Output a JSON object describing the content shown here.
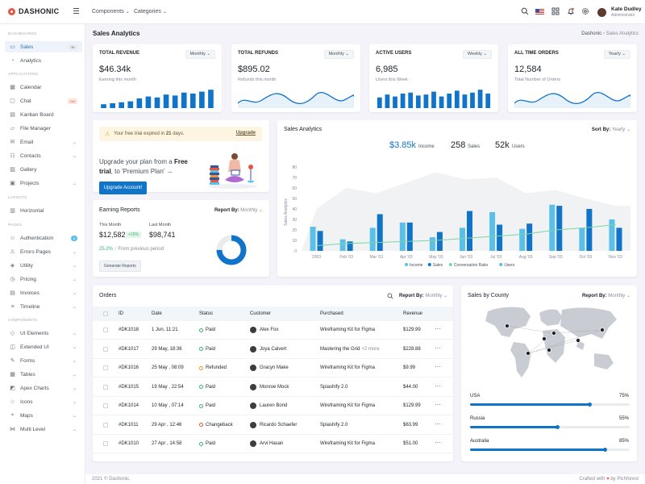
{
  "brand": "DASHONIC",
  "topbar": {
    "menu1": "Components",
    "menu2": "Categories",
    "user_name": "Kate Dudley",
    "user_role": "Administrator"
  },
  "sidebar": {
    "section1": "DASHBOARDS",
    "section2": "APPLICATIONS",
    "section3": "LAYOUTS",
    "section4": "PAGES",
    "section5": "COMPONENTS",
    "items": [
      {
        "label": "Sales",
        "icon": "monitor-icon",
        "badge": "5+",
        "active": true
      },
      {
        "label": "Analytics",
        "icon": "pie-chart-icon"
      },
      {
        "label": "Calendar",
        "icon": "calendar-icon"
      },
      {
        "label": "Chat",
        "icon": "chat-icon",
        "badge": "Hot"
      },
      {
        "label": "Kanban Board",
        "icon": "kanban-icon"
      },
      {
        "label": "File Manager",
        "icon": "folder-icon"
      },
      {
        "label": "Email",
        "icon": "mail-icon",
        "chev": true
      },
      {
        "label": "Contacts",
        "icon": "contacts-icon",
        "chev": true
      },
      {
        "label": "Gallery",
        "icon": "image-icon"
      },
      {
        "label": "Projects",
        "icon": "briefcase-icon",
        "chev": true
      },
      {
        "label": "Horizontal",
        "icon": "layout-icon"
      },
      {
        "label": "Authentication",
        "icon": "user-icon",
        "badge": "8"
      },
      {
        "label": "Errors Pages",
        "icon": "alert-icon",
        "chev": true
      },
      {
        "label": "Utility",
        "icon": "cube-icon",
        "chev": true
      },
      {
        "label": "Pricing",
        "icon": "pricing-icon",
        "chev": true
      },
      {
        "label": "Invoices",
        "icon": "invoice-icon",
        "chev": true
      },
      {
        "label": "Timeline",
        "icon": "timeline-icon",
        "chev": true
      },
      {
        "label": "UI Elements",
        "icon": "layers-icon",
        "chev": true
      },
      {
        "label": "Extended UI",
        "icon": "package-icon",
        "chev": true
      },
      {
        "label": "Forms",
        "icon": "forms-icon",
        "chev": true
      },
      {
        "label": "Tables",
        "icon": "table-icon",
        "chev": true
      },
      {
        "label": "Apex Charts",
        "icon": "chart-icon",
        "chev": true
      },
      {
        "label": "Icons",
        "icon": "icons-icon",
        "chev": true
      },
      {
        "label": "Maps",
        "icon": "map-icon",
        "chev": true
      },
      {
        "label": "Multi Level",
        "icon": "share-icon",
        "chev": true
      }
    ]
  },
  "page": {
    "title": "Sales Analytics",
    "crumb_root": "Dashonic",
    "crumb_current": "Sales Analytics"
  },
  "kpis": [
    {
      "title": "TOTAL REVENUE",
      "select": "Monthly",
      "value": "$46.34k",
      "sub": "Earning this month",
      "kind": "bars",
      "values": [
        0.2,
        0.25,
        0.3,
        0.35,
        0.5,
        0.6,
        0.55,
        0.7,
        0.65,
        0.8,
        0.75,
        0.85,
        0.95
      ]
    },
    {
      "title": "TOTAL REFUNDS",
      "select": "Monthly",
      "value": "$895.02",
      "sub": "Refunds this month",
      "kind": "line"
    },
    {
      "title": "ACTIVE USERS",
      "select": "Weekly",
      "value": "6,985",
      "sub": "Users this Week",
      "kind": "bars",
      "values": [
        0.55,
        0.7,
        0.6,
        0.75,
        0.8,
        0.65,
        0.7,
        0.85,
        0.6,
        0.75,
        0.9,
        0.7,
        0.8,
        0.95,
        0.75
      ]
    },
    {
      "title": "ALL TIME ORDERS",
      "select": "Yearly",
      "value": "12,584",
      "sub": "Total Number of Orders",
      "kind": "line"
    }
  ],
  "upgrade": {
    "trial_pre": "Your free trial expired in",
    "trial_days": "21",
    "trial_post": "days.",
    "upgrade_link": "Upgrade",
    "text1": "Upgrade your plan from a",
    "text_bold1": "Free trial",
    "text2": ", to 'Premium Plan'",
    "button": "Upgrade Account!"
  },
  "earning": {
    "title": "Earning Reports",
    "report_label": "Report By:",
    "report_value": "Monthly",
    "this_month_label": "This Month",
    "this_month_value": "$12,582",
    "badge": "+15%",
    "last_month_label": "Last Month",
    "last_month_value": "$98,741",
    "growth": "25.2%",
    "growth_text": "From previous period",
    "button": "Generate Reports",
    "donut_fraction": 0.75
  },
  "sales_analytics": {
    "title": "Sales Analytics",
    "sort_label": "Sort By:",
    "sort_value": "Yearly",
    "income": "$3.85k",
    "income_label": "Income",
    "sales": "258",
    "sales_label": "Sales",
    "users": "52k",
    "users_label": "Users"
  },
  "chart_data": {
    "type": "bar",
    "ylabel": "Sales Analytics",
    "ylim": [
      0,
      80
    ],
    "yticks": [
      "0",
      "10",
      "20",
      "30",
      "40",
      "50",
      "60",
      "70",
      "80"
    ],
    "categories": [
      "2003",
      "Feb '03",
      "Mar '03",
      "Apr '03",
      "May '03",
      "Jun '03",
      "Jul '03",
      "Aug '03",
      "Sep '03",
      "Oct '03",
      "Nov '03"
    ],
    "series": [
      {
        "name": "Income",
        "type": "bar",
        "color": "#5bc0e8",
        "values": [
          23,
          11,
          22,
          27,
          13,
          22,
          37,
          21,
          44,
          22,
          30
        ]
      },
      {
        "name": "Sales",
        "type": "bar",
        "color": "#1074c9",
        "values": [
          19,
          9,
          35,
          27,
          18,
          38,
          25,
          26,
          43,
          40,
          22
        ]
      },
      {
        "name": "Conversation Ratio",
        "type": "line",
        "color": "#7bd4a4",
        "values": [
          5,
          7,
          8,
          9,
          10,
          12,
          14,
          16,
          20,
          22,
          25
        ]
      },
      {
        "name": "Users",
        "type": "area",
        "color": "#e5e7ea",
        "values": [
          40,
          60,
          55,
          65,
          75,
          68,
          70,
          55,
          58,
          50,
          43
        ]
      }
    ]
  },
  "orders": {
    "title": "Orders",
    "report_label": "Report By:",
    "report_value": "Monthly",
    "columns": [
      "ID",
      "Date",
      "Status",
      "Customer",
      "Purchased",
      "Revenue"
    ],
    "rows": [
      {
        "id": "#DK1018",
        "date": "1 Jun, 11:21",
        "status": "Paid",
        "customer": "Alex Fox",
        "purchased": "Wireframing Kit for Figma",
        "revenue": "$129.99"
      },
      {
        "id": "#DK1017",
        "date": "29 May, 18:36",
        "status": "Paid",
        "customer": "Joya Calvert",
        "purchased": "Mastering the Grid",
        "extra": "+2 more",
        "revenue": "$228.88"
      },
      {
        "id": "#DK1016",
        "date": "25 May , 08:09",
        "status": "Refunded",
        "customer": "Gracyn Make",
        "purchased": "Wireframing Kit for Figma",
        "revenue": "$9.99"
      },
      {
        "id": "#DK1015",
        "date": "19 May , 22:54",
        "status": "Paid",
        "customer": "Monroe Mock",
        "purchased": "Spiashify 2.0",
        "revenue": "$44.00"
      },
      {
        "id": "#DK1014",
        "date": "10 May , 07:14",
        "status": "Paid",
        "customer": "Lauren Bond",
        "purchased": "Wireframing Kit for Figma",
        "revenue": "$129.99"
      },
      {
        "id": "#DK1011",
        "date": "29 Apr , 12:46",
        "status": "Changeback",
        "customer": "Ricardo Schaefer",
        "purchased": "Spiashify 2.0",
        "revenue": "$63.99"
      },
      {
        "id": "#DK1010",
        "date": "27 Apr , 14:58",
        "status": "Paid",
        "customer": "Arvi Hasan",
        "purchased": "Wireframing Kit for Figma",
        "revenue": "$51.00"
      }
    ]
  },
  "county": {
    "title": "Sales by County",
    "report_label": "Report By:",
    "report_value": "Monthly",
    "rows": [
      {
        "name": "USA",
        "pct": "75%",
        "value": 0.75
      },
      {
        "name": "Russia",
        "pct": "55%",
        "value": 0.55
      },
      {
        "name": "Australia",
        "pct": "85%",
        "value": 0.85
      }
    ]
  },
  "footer": {
    "left": "2021 © Dashonic.",
    "right_pre": "Crafted with",
    "right_post": "by Pichforest"
  },
  "colors": {
    "primary": "#1074c9",
    "light": "#5bc0e8",
    "green": "#3ab370"
  }
}
